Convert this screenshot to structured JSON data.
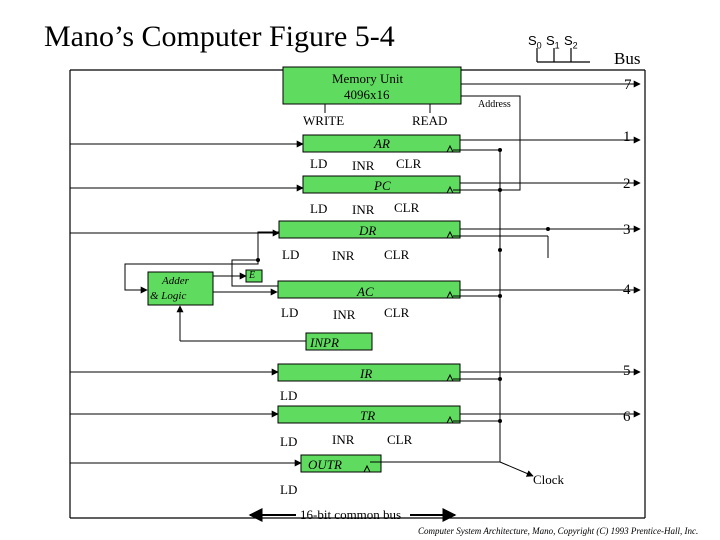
{
  "title": "Mano’s Computer Figure 5-4",
  "selects": {
    "s0": "S",
    "s0_sub": "0",
    "s1": "S",
    "s1_sub": "1",
    "s2": "S",
    "s2_sub": "2"
  },
  "bus_label": "Bus",
  "memory": {
    "line1": "Memory Unit",
    "line2": "4096x16",
    "write": "WRITE",
    "read": "READ",
    "number": "7"
  },
  "address_label": "Address",
  "registers": {
    "ar": {
      "name": "AR",
      "number": "1",
      "ld": "LD",
      "inr": "INR",
      "clr": "CLR"
    },
    "pc": {
      "name": "PC",
      "number": "2",
      "ld": "LD",
      "inr": "INR",
      "clr": "CLR"
    },
    "dr": {
      "name": "DR",
      "number": "3",
      "ld": "LD",
      "inr": "INR",
      "clr": "CLR"
    },
    "ac": {
      "name": "AC",
      "number": "4",
      "ld": "LD",
      "inr": "INR",
      "clr": "CLR"
    },
    "inpr": {
      "name": "INPR"
    },
    "ir": {
      "name": "IR",
      "number": "5",
      "ld": "LD"
    },
    "tr": {
      "name": "TR",
      "number": "6",
      "ld": "LD",
      "inr": "INR",
      "clr": "CLR"
    },
    "outr": {
      "name": "OUTR",
      "ld": "LD"
    }
  },
  "adder": {
    "line1": "Adder",
    "line2": "& Logic"
  },
  "e_label": "E",
  "clock_label": "Clock",
  "bus_caption": "16-bit common bus",
  "footer": "Computer System Architecture, Mano, Copyright (C) 1993 Prentice-Hall, Inc.",
  "colors": {
    "box_fill": "#5fdc5f",
    "line": "#000000",
    "background": "#ffffff"
  }
}
